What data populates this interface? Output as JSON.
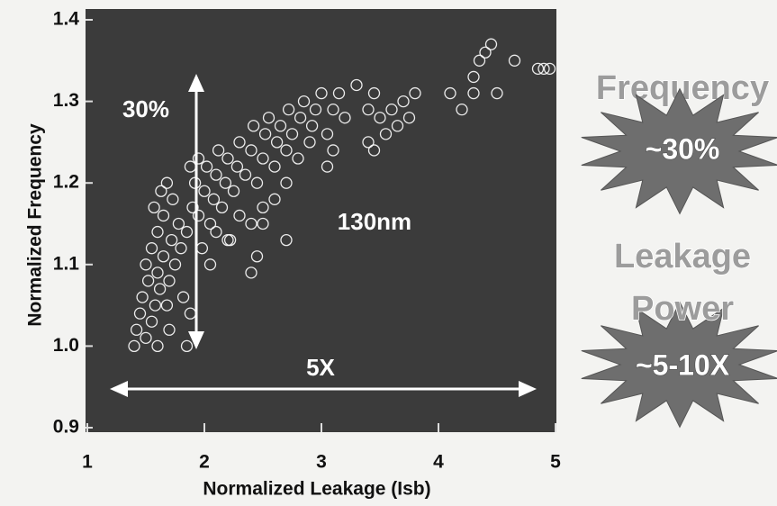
{
  "chart_data": {
    "type": "scatter",
    "xlabel": "Normalized Leakage (Isb)",
    "ylabel": "Normalized Frequency",
    "x": [
      1.4,
      1.42,
      1.45,
      1.5,
      1.47,
      1.52,
      1.55,
      1.6,
      1.58,
      1.62,
      1.5,
      1.55,
      1.6,
      1.65,
      1.68,
      1.7,
      1.72,
      1.6,
      1.65,
      1.7,
      1.75,
      1.78,
      1.8,
      1.57,
      1.63,
      1.68,
      1.73,
      1.82,
      1.85,
      1.88,
      1.85,
      1.9,
      1.92,
      1.95,
      2.0,
      2.02,
      2.05,
      2.08,
      2.1,
      2.12,
      2.15,
      2.18,
      2.2,
      2.22,
      2.25,
      2.28,
      2.3,
      1.98,
      2.05,
      2.1,
      1.88,
      1.95,
      2.35,
      2.4,
      2.42,
      2.45,
      2.5,
      2.52,
      2.55,
      2.6,
      2.62,
      2.65,
      2.7,
      2.72,
      2.75,
      2.8,
      2.82,
      2.85,
      2.9,
      2.92,
      2.95,
      3.0,
      2.7,
      2.6,
      2.5,
      2.4,
      2.4,
      2.45,
      2.5,
      2.7,
      2.3,
      2.2,
      3.05,
      3.1,
      3.15,
      3.2,
      3.1,
      3.3,
      3.4,
      3.45,
      3.5,
      3.4,
      3.6,
      3.65,
      3.7,
      3.75,
      3.8,
      3.45,
      3.55,
      3.05,
      4.1,
      4.2,
      4.3,
      4.35,
      4.4,
      4.45,
      4.5,
      4.3,
      4.65,
      4.85,
      4.95,
      4.9
    ],
    "values": [
      1.0,
      1.02,
      1.04,
      1.01,
      1.06,
      1.08,
      1.03,
      1.0,
      1.05,
      1.07,
      1.1,
      1.12,
      1.09,
      1.11,
      1.05,
      1.08,
      1.13,
      1.14,
      1.16,
      1.02,
      1.1,
      1.15,
      1.12,
      1.17,
      1.19,
      1.2,
      1.18,
      1.06,
      1.0,
      1.04,
      1.14,
      1.17,
      1.2,
      1.16,
      1.19,
      1.22,
      1.15,
      1.18,
      1.21,
      1.24,
      1.17,
      1.2,
      1.23,
      1.13,
      1.19,
      1.22,
      1.25,
      1.12,
      1.1,
      1.14,
      1.22,
      1.23,
      1.21,
      1.24,
      1.27,
      1.2,
      1.23,
      1.26,
      1.28,
      1.22,
      1.25,
      1.27,
      1.24,
      1.29,
      1.26,
      1.23,
      1.28,
      1.3,
      1.25,
      1.27,
      1.29,
      1.31,
      1.2,
      1.18,
      1.17,
      1.15,
      1.09,
      1.11,
      1.15,
      1.13,
      1.16,
      1.13,
      1.26,
      1.29,
      1.31,
      1.28,
      1.24,
      1.32,
      1.29,
      1.31,
      1.28,
      1.25,
      1.29,
      1.27,
      1.3,
      1.28,
      1.31,
      1.24,
      1.26,
      1.22,
      1.31,
      1.29,
      1.33,
      1.35,
      1.36,
      1.37,
      1.31,
      1.31,
      1.35,
      1.34,
      1.34,
      1.34
    ],
    "color": "#ffffff",
    "xlim": [
      1,
      5
    ],
    "xticks": [
      1,
      2,
      3,
      4,
      5
    ],
    "ylim": [
      0.9,
      1.4
    ],
    "yticks": [
      0.9,
      {
        "value": 1,
        "label": "1.0"
      },
      1.1,
      1.2,
      1.3,
      1.4
    ],
    "annotations": [
      "30%",
      "130nm",
      "5X",
      "Frequency",
      "~30%",
      "Leakage",
      "Power",
      "~5-10X"
    ]
  }
}
